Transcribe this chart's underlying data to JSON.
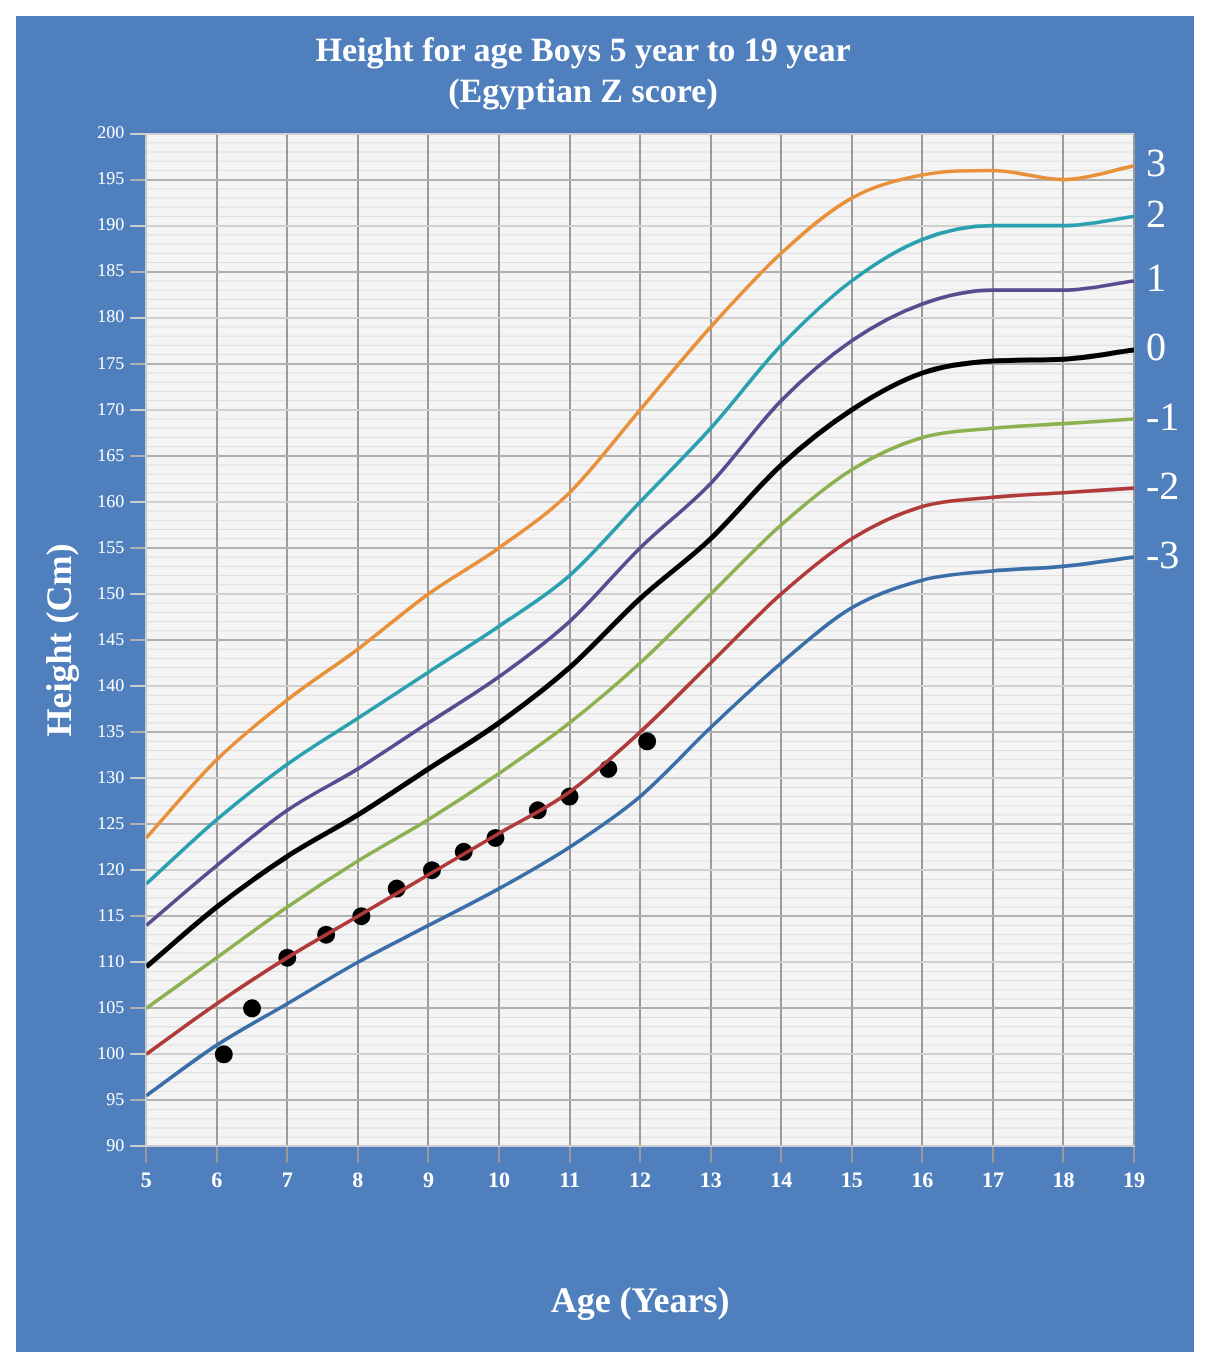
{
  "chart_data": {
    "type": "line",
    "title": "Height for age Boys 5 year to 19 year",
    "subtitle": "(Egyptian Z score)",
    "xlabel": "Age (Years)",
    "ylabel": "Height (Cm)",
    "xlim": [
      5,
      19
    ],
    "xticks": [
      5,
      6,
      7,
      8,
      9,
      10,
      11,
      12,
      13,
      14,
      15,
      16,
      17,
      18,
      19
    ],
    "ylim": [
      90,
      200
    ],
    "yticks": [
      90,
      95,
      100,
      105,
      110,
      115,
      120,
      125,
      130,
      135,
      140,
      145,
      150,
      155,
      160,
      165,
      170,
      175,
      180,
      185,
      190,
      195,
      200
    ],
    "grid": true,
    "legend": false,
    "marker": "none",
    "line_style": "solid",
    "x": [
      5,
      6,
      7,
      8,
      9,
      10,
      11,
      12,
      13,
      14,
      15,
      16,
      17,
      18,
      19
    ],
    "series": [
      {
        "name": "3",
        "color": "#e8913a",
        "values": [
          123.5,
          132,
          138.5,
          144,
          150,
          155,
          161,
          170,
          179,
          187,
          193,
          195.5,
          196,
          195,
          196.5
        ]
      },
      {
        "name": "2",
        "color": "#2aa0b0",
        "values": [
          118.5,
          125.5,
          131.5,
          136.5,
          141.5,
          146.5,
          152,
          160,
          168,
          177,
          184,
          188.5,
          190,
          190,
          191
        ]
      },
      {
        "name": "1",
        "color": "#5a4a90",
        "values": [
          114,
          120.5,
          126.5,
          131,
          136,
          141,
          147,
          155,
          162,
          171,
          177.5,
          181.5,
          183,
          183,
          184
        ]
      },
      {
        "name": "0",
        "color": "#000000",
        "values": [
          109.5,
          116,
          121.5,
          126,
          131,
          136,
          142,
          149.5,
          156,
          164,
          170,
          174,
          175.3,
          175.5,
          176.5
        ]
      },
      {
        "name": "-1",
        "color": "#8db050",
        "values": [
          105,
          110.5,
          116,
          121,
          125.5,
          130.5,
          136,
          142.5,
          150,
          157.5,
          163.5,
          167,
          168,
          168.5,
          169
        ]
      },
      {
        "name": "-2",
        "color": "#b03a3a",
        "values": [
          100,
          105.5,
          110.5,
          115,
          119.5,
          124,
          128.5,
          135,
          142.5,
          150,
          156,
          159.5,
          160.5,
          161,
          161.5
        ]
      },
      {
        "name": "-3",
        "color": "#3a6ea8",
        "values": [
          95.5,
          101,
          105.5,
          110,
          114,
          118,
          122.5,
          128,
          135.5,
          142.5,
          148.5,
          151.5,
          152.5,
          153,
          154
        ]
      },
      {
        "type": "scatter",
        "color": "#000000",
        "marker": "circle",
        "x": [
          6.1,
          6.5,
          7.0,
          7.55,
          8.05,
          8.55,
          9.05,
          9.5,
          9.95,
          10.55,
          11.0,
          11.55,
          12.1
        ],
        "values": [
          100,
          105,
          110.5,
          113,
          115,
          118,
          120,
          122,
          123.5,
          126.5,
          128,
          131,
          134
        ]
      }
    ]
  }
}
